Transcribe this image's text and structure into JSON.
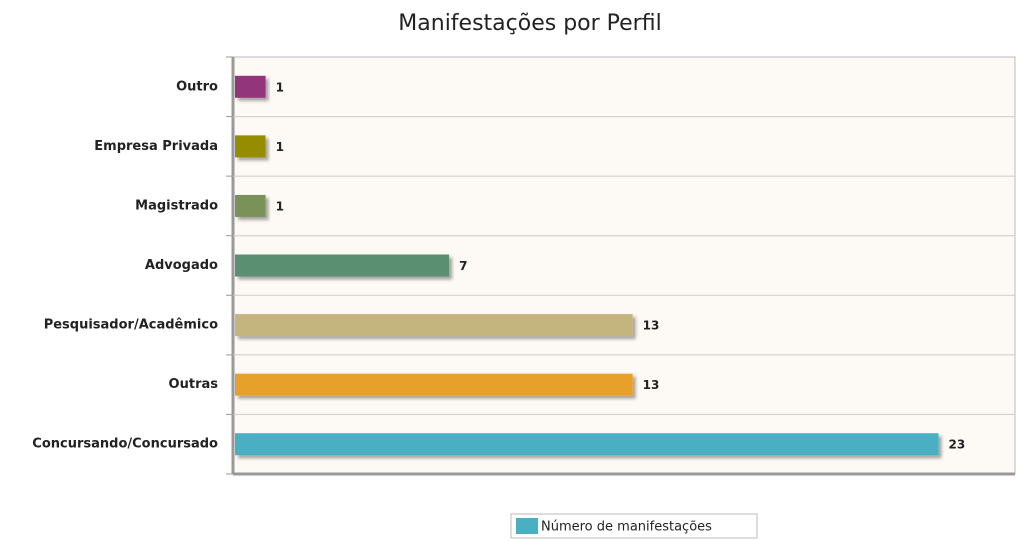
{
  "chart_data": {
    "type": "hbar",
    "title": "Manifestações por Perfil",
    "categories": [
      "Outro",
      "Empresa Privada",
      "Magistrado",
      "Advogado",
      "Pesquisador/Acadêmico",
      "Outras",
      "Concursando/Concursado"
    ],
    "series": [
      {
        "name": "Número de manifestações",
        "color": "#4bafc4",
        "colors": [
          "#93357a",
          "#958c00",
          "#7a9159",
          "#5a9071",
          "#c4b47e",
          "#e7a12b",
          "#4bafc4"
        ],
        "values": [
          1,
          1,
          1,
          7,
          13,
          13,
          23
        ]
      }
    ],
    "xlim": [
      0,
      25.5
    ],
    "grid": true,
    "legend": "bottom"
  }
}
